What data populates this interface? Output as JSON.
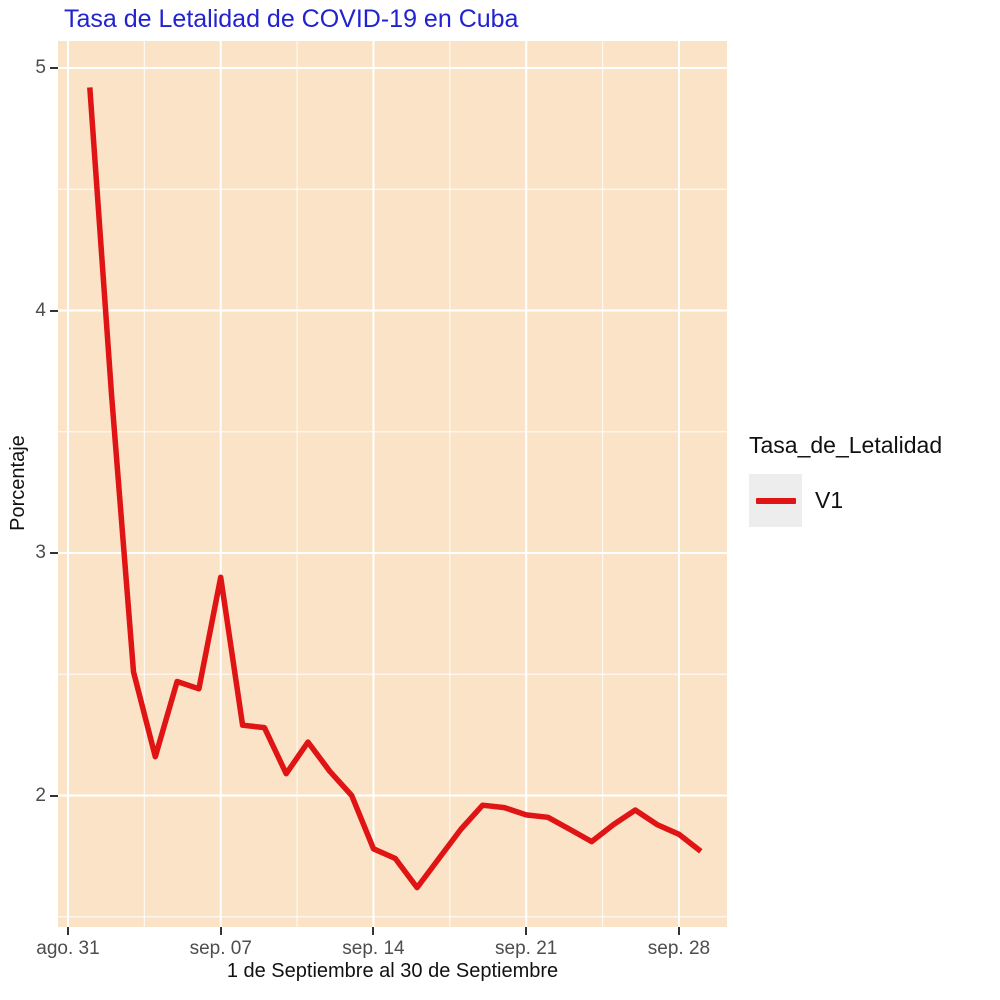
{
  "title": "Tasa de Letalidad de COVID-19 en Cuba",
  "axes": {
    "y_label": "Porcentaje",
    "x_label": "1 de Septiembre al 30 de Septiembre",
    "y_tick_labels": [
      "5",
      "4",
      "3",
      "2"
    ],
    "x_tick_labels": [
      "ago. 31",
      "sep. 07",
      "sep. 14",
      "sep. 21",
      "sep. 28"
    ]
  },
  "legend": {
    "title": "Tasa_de_Letalidad",
    "series_label": "V1"
  },
  "colors": {
    "line": "#E01414",
    "panel_bg": "#FAE3C7",
    "grid_major": "#FFFFFF",
    "grid_minor": "rgba(255,255,255,0.75)",
    "title_text": "#2222D0",
    "tick_text": "#4D4D4D",
    "tick_mark": "#333333",
    "legend_key_bg": "#EDEDED"
  },
  "chart_data": {
    "type": "line",
    "title": "Tasa de Letalidad de COVID-19 en Cuba",
    "xlabel": "1 de Septiembre al 30 de Septiembre",
    "ylabel": "Porcentaje",
    "x_unit": "day of September (0 = ago. 31)",
    "x_ticks": [
      {
        "day": 0,
        "label": "ago. 31"
      },
      {
        "day": 7,
        "label": "sep. 07"
      },
      {
        "day": 14,
        "label": "sep. 14"
      },
      {
        "day": 21,
        "label": "sep. 21"
      },
      {
        "day": 28,
        "label": "sep. 28"
      }
    ],
    "y_ticks": [
      {
        "value": 5,
        "label": "5"
      },
      {
        "value": 4,
        "label": "4"
      },
      {
        "value": 3,
        "label": "3"
      },
      {
        "value": 2,
        "label": "2"
      }
    ],
    "y_minor_ticks": [
      4.5,
      3.5,
      2.5,
      1.5
    ],
    "x_minor_tick_days": [
      3.5,
      10.5,
      17.5,
      24.5
    ],
    "ylim": [
      1.45,
      5.11
    ],
    "xlim_days": [
      -0.5,
      30.2
    ],
    "grid": true,
    "legend_position": "right",
    "legend_title": "Tasa_de_Letalidad",
    "series": [
      {
        "name": "V1",
        "color": "#E01414",
        "days": [
          1,
          2,
          3,
          4,
          5,
          6,
          7,
          8,
          9,
          10,
          11,
          12,
          13,
          14,
          15,
          16,
          17,
          18,
          19,
          20,
          21,
          22,
          23,
          24,
          25,
          26,
          27,
          28,
          29
        ],
        "values": [
          4.92,
          3.65,
          2.51,
          2.16,
          2.47,
          2.44,
          2.9,
          2.29,
          2.28,
          2.09,
          2.22,
          2.1,
          2.0,
          1.78,
          1.74,
          1.62,
          1.74,
          1.86,
          1.96,
          1.95,
          1.92,
          1.91,
          1.86,
          1.81,
          1.88,
          1.94,
          1.88,
          1.84,
          1.77
        ]
      }
    ]
  }
}
